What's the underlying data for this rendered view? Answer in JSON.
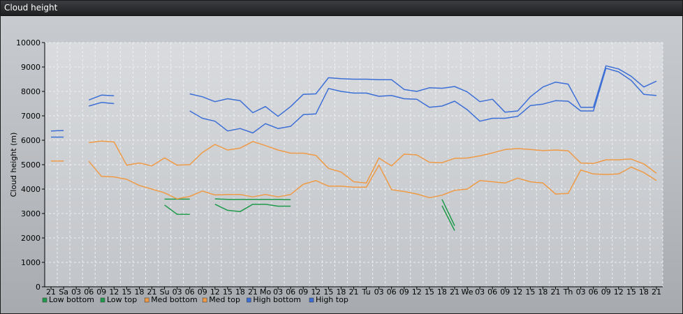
{
  "window": {
    "title": "Cloud height"
  },
  "chart_data": {
    "type": "line",
    "title": "Cloud height",
    "ylabel": "Cloud height (m)",
    "xlabel": "",
    "ylim": [
      0,
      10000
    ],
    "yticks": [
      0,
      1000,
      2000,
      3000,
      4000,
      5000,
      6000,
      7000,
      8000,
      9000,
      10000
    ],
    "grid": true,
    "legend": "bottom-left",
    "categories": [
      "21",
      "Sa",
      "03",
      "06",
      "09",
      "12",
      "15",
      "18",
      "21",
      "Su",
      "03",
      "06",
      "09",
      "12",
      "15",
      "18",
      "21",
      "Mo",
      "03",
      "06",
      "09",
      "12",
      "15",
      "18",
      "21",
      "Tu",
      "03",
      "06",
      "09",
      "12",
      "15",
      "18",
      "21",
      "We",
      "03",
      "06",
      "09",
      "12",
      "15",
      "18",
      "21",
      "Th",
      "03",
      "06",
      "09",
      "12",
      "15",
      "18",
      "21"
    ],
    "series": [
      {
        "name": "Low bottom",
        "color": "#1f9a4a",
        "segments": [
          [
            [
              9,
              3350
            ],
            [
              10,
              2970
            ],
            [
              11,
              2970
            ]
          ],
          [
            [
              13,
              3380
            ],
            [
              14,
              3130
            ],
            [
              15,
              3080
            ],
            [
              16,
              3380
            ],
            [
              17,
              3380
            ],
            [
              18,
              3300
            ],
            [
              19,
              3300
            ]
          ],
          [
            [
              31,
              3320
            ],
            [
              32,
              2300
            ]
          ]
        ]
      },
      {
        "name": "Low top",
        "color": "#1f9a4a",
        "segments": [
          [
            [
              9,
              3590
            ],
            [
              10,
              3590
            ],
            [
              11,
              3590
            ]
          ],
          [
            [
              13,
              3600
            ],
            [
              14,
              3580
            ],
            [
              15,
              3580
            ],
            [
              16,
              3580
            ],
            [
              17,
              3580
            ],
            [
              18,
              3580
            ],
            [
              19,
              3570
            ]
          ],
          [
            [
              31,
              3580
            ],
            [
              32,
              2500
            ]
          ]
        ]
      },
      {
        "name": "Med bottom",
        "color": "#ef9a45",
        "segments": [
          [
            [
              0,
              5150
            ],
            [
              1,
              5150
            ]
          ],
          [
            [
              3,
              5140
            ],
            [
              4,
              4520
            ],
            [
              5,
              4500
            ],
            [
              6,
              4400
            ],
            [
              7,
              4150
            ],
            [
              8,
              4000
            ],
            [
              9,
              3850
            ],
            [
              10,
              3600
            ],
            [
              11,
              3700
            ],
            [
              12,
              3920
            ],
            [
              13,
              3760
            ],
            [
              14,
              3780
            ],
            [
              15,
              3780
            ],
            [
              16,
              3680
            ],
            [
              17,
              3780
            ],
            [
              18,
              3680
            ],
            [
              19,
              3780
            ],
            [
              20,
              4200
            ],
            [
              21,
              4350
            ],
            [
              22,
              4120
            ],
            [
              23,
              4120
            ],
            [
              24,
              4080
            ],
            [
              25,
              4080
            ],
            [
              26,
              4980
            ],
            [
              27,
              3980
            ],
            [
              28,
              3900
            ],
            [
              29,
              3800
            ],
            [
              30,
              3650
            ],
            [
              31,
              3750
            ],
            [
              32,
              3950
            ],
            [
              33,
              4000
            ],
            [
              34,
              4350
            ],
            [
              35,
              4300
            ],
            [
              36,
              4250
            ],
            [
              37,
              4450
            ],
            [
              38,
              4300
            ],
            [
              39,
              4250
            ],
            [
              40,
              3800
            ],
            [
              41,
              3820
            ],
            [
              42,
              4780
            ],
            [
              43,
              4620
            ],
            [
              44,
              4600
            ],
            [
              45,
              4620
            ],
            [
              46,
              4900
            ],
            [
              47,
              4680
            ],
            [
              48,
              4350
            ]
          ]
        ]
      },
      {
        "name": "Med top",
        "color": "#ef9a45",
        "segments": [
          [
            [
              0,
              5150
            ],
            [
              1,
              5150
            ]
          ],
          [
            [
              3,
              5900
            ],
            [
              4,
              5970
            ],
            [
              5,
              5930
            ],
            [
              6,
              4980
            ],
            [
              7,
              5070
            ],
            [
              8,
              4950
            ],
            [
              9,
              5280
            ],
            [
              10,
              4980
            ],
            [
              11,
              5000
            ],
            [
              12,
              5500
            ],
            [
              13,
              5830
            ],
            [
              14,
              5600
            ],
            [
              15,
              5680
            ],
            [
              16,
              5950
            ],
            [
              17,
              5780
            ],
            [
              18,
              5600
            ],
            [
              19,
              5470
            ],
            [
              20,
              5470
            ],
            [
              21,
              5380
            ],
            [
              22,
              4850
            ],
            [
              23,
              4700
            ],
            [
              24,
              4300
            ],
            [
              25,
              4250
            ],
            [
              26,
              5270
            ],
            [
              27,
              4950
            ],
            [
              28,
              5430
            ],
            [
              29,
              5400
            ],
            [
              30,
              5100
            ],
            [
              31,
              5080
            ],
            [
              32,
              5260
            ],
            [
              33,
              5270
            ],
            [
              34,
              5360
            ],
            [
              35,
              5480
            ],
            [
              36,
              5620
            ],
            [
              37,
              5660
            ],
            [
              38,
              5620
            ],
            [
              39,
              5580
            ],
            [
              40,
              5600
            ],
            [
              41,
              5570
            ],
            [
              42,
              5070
            ],
            [
              43,
              5050
            ],
            [
              44,
              5200
            ],
            [
              45,
              5200
            ],
            [
              46,
              5230
            ],
            [
              47,
              5030
            ],
            [
              48,
              4650
            ]
          ]
        ]
      },
      {
        "name": "High bottom",
        "color": "#3b6ed6",
        "segments": [
          [
            [
              0,
              6130
            ],
            [
              1,
              6130
            ]
          ],
          [
            [
              3,
              7400
            ],
            [
              4,
              7550
            ],
            [
              5,
              7500
            ]
          ],
          [
            [
              11,
              7200
            ],
            [
              12,
              6900
            ],
            [
              13,
              6780
            ],
            [
              14,
              6380
            ],
            [
              15,
              6480
            ],
            [
              16,
              6300
            ],
            [
              17,
              6680
            ],
            [
              18,
              6480
            ],
            [
              19,
              6570
            ],
            [
              20,
              7050
            ],
            [
              21,
              7080
            ],
            [
              22,
              8120
            ],
            [
              23,
              8000
            ],
            [
              24,
              7930
            ],
            [
              25,
              7930
            ],
            [
              26,
              7800
            ],
            [
              27,
              7830
            ],
            [
              28,
              7700
            ],
            [
              29,
              7680
            ],
            [
              30,
              7350
            ],
            [
              31,
              7400
            ],
            [
              32,
              7600
            ],
            [
              33,
              7250
            ],
            [
              34,
              6780
            ],
            [
              35,
              6900
            ],
            [
              36,
              6900
            ],
            [
              37,
              6980
            ],
            [
              38,
              7420
            ],
            [
              39,
              7480
            ],
            [
              40,
              7620
            ],
            [
              41,
              7600
            ],
            [
              42,
              7200
            ],
            [
              43,
              7200
            ],
            [
              44,
              8950
            ],
            [
              45,
              8800
            ],
            [
              46,
              8450
            ],
            [
              47,
              7880
            ],
            [
              48,
              7830
            ]
          ]
        ]
      },
      {
        "name": "High top",
        "color": "#3b6ed6",
        "segments": [
          [
            [
              0,
              6380
            ],
            [
              1,
              6400
            ]
          ],
          [
            [
              3,
              7650
            ],
            [
              4,
              7850
            ],
            [
              5,
              7820
            ]
          ],
          [
            [
              11,
              7900
            ],
            [
              12,
              7780
            ],
            [
              13,
              7580
            ],
            [
              14,
              7700
            ],
            [
              15,
              7620
            ],
            [
              16,
              7130
            ],
            [
              17,
              7380
            ],
            [
              18,
              6980
            ],
            [
              19,
              7380
            ],
            [
              20,
              7880
            ],
            [
              21,
              7900
            ],
            [
              22,
              8560
            ],
            [
              23,
              8520
            ],
            [
              24,
              8500
            ],
            [
              25,
              8500
            ],
            [
              26,
              8480
            ],
            [
              27,
              8480
            ],
            [
              28,
              8080
            ],
            [
              29,
              8000
            ],
            [
              30,
              8150
            ],
            [
              31,
              8130
            ],
            [
              32,
              8200
            ],
            [
              33,
              7980
            ],
            [
              34,
              7580
            ],
            [
              35,
              7680
            ],
            [
              36,
              7150
            ],
            [
              37,
              7200
            ],
            [
              38,
              7780
            ],
            [
              39,
              8180
            ],
            [
              40,
              8380
            ],
            [
              41,
              8300
            ],
            [
              42,
              7350
            ],
            [
              43,
              7350
            ],
            [
              44,
              9050
            ],
            [
              45,
              8920
            ],
            [
              46,
              8620
            ],
            [
              47,
              8180
            ],
            [
              48,
              8420
            ]
          ]
        ]
      }
    ]
  }
}
